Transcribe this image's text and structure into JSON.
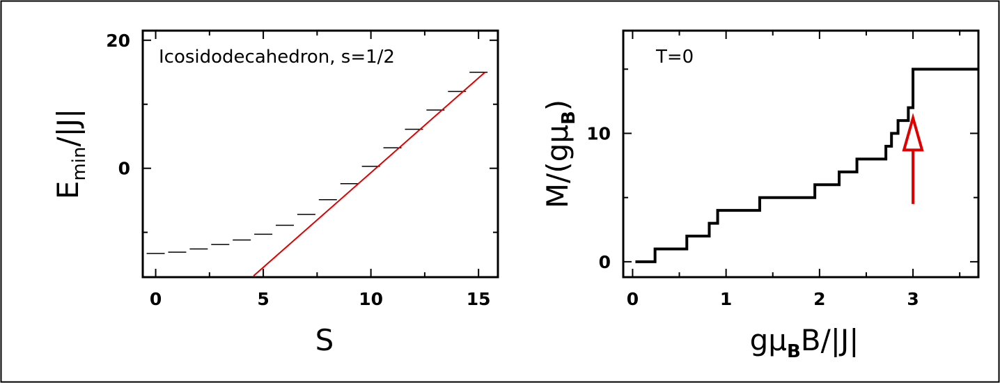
{
  "colors": {
    "fit_line": "#e00000",
    "arrow": "#e00000",
    "data": "#000000",
    "frame": "#000000"
  },
  "chart_data": [
    {
      "type": "scatter",
      "annotation": "Icosidodecahedron, s=1/2",
      "xlabel": "S",
      "ylabel": {
        "main": "E",
        "sub": "min",
        "rest": "/|J|"
      },
      "xlim": [
        -0.6,
        15.9
      ],
      "ylim": [
        -17,
        21.5
      ],
      "xticks": [
        0,
        5,
        10,
        15
      ],
      "yticks": [
        0,
        20
      ],
      "series": [
        {
          "x": [
            0,
            1,
            2,
            3,
            4,
            5,
            6,
            7,
            8,
            9,
            10,
            11,
            12,
            13,
            14,
            15
          ],
          "values": [
            -13.3,
            -13.1,
            -12.6,
            -11.9,
            -11.2,
            -10.3,
            -8.9,
            -7.2,
            -4.9,
            -2.4,
            0.3,
            3.2,
            6.1,
            9.1,
            12.0,
            15.0
          ]
        }
      ],
      "fit_line": {
        "x": [
          4.55,
          15.3
        ],
        "y": [
          -16.8,
          15.0
        ]
      }
    },
    {
      "type": "line",
      "annotation": "T=0",
      "xlabel": "gμ_B B/|J|",
      "xlabel_parts": {
        "a": "gμ",
        "sub": "B",
        "b": "B/|J|"
      },
      "ylabel": {
        "main": "M/(gμ",
        "sub": "B",
        "rest": ")"
      },
      "xlim": [
        -0.1,
        3.7
      ],
      "ylim": [
        -1.2,
        18
      ],
      "xticks": [
        0,
        1,
        2,
        3
      ],
      "yticks": [
        0,
        10
      ],
      "series": [
        {
          "step_x": [
            0.24,
            0.42,
            0.58,
            0.82,
            0.91,
            1.36,
            1.95,
            2.21,
            2.4,
            2.71,
            2.77,
            2.84,
            2.95,
            3.0
          ],
          "values": [
            0,
            1,
            2,
            3,
            4,
            5,
            6,
            7,
            8,
            9,
            10,
            11,
            12,
            15
          ],
          "x_start": 0.03,
          "x_end": 3.7
        }
      ],
      "arrow": {
        "x": 3.0,
        "y_from": 4.5,
        "y_to": 11.2
      }
    }
  ]
}
